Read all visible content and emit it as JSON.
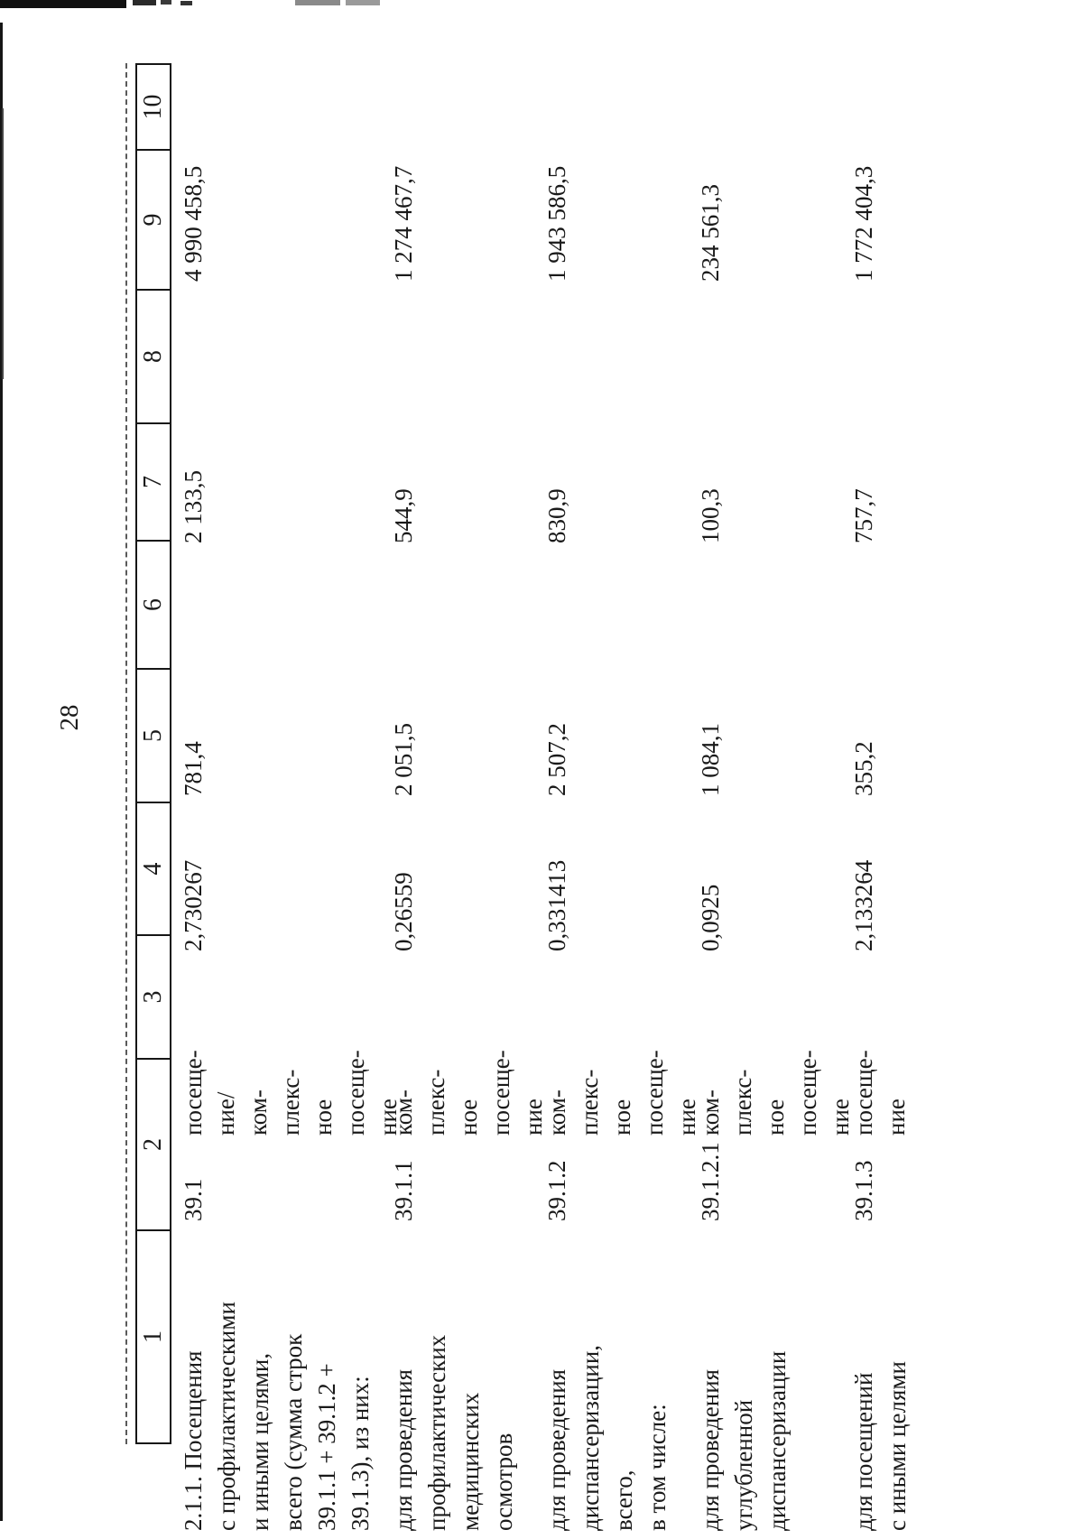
{
  "page": {
    "number": "28"
  },
  "table": {
    "header_columns": [
      "1",
      "2",
      "3",
      "4",
      "5",
      "6",
      "7",
      "8",
      "9",
      "10"
    ],
    "rows": [
      {
        "name": "2.1.1. Посещения\nс профилактическими\nи иными целями,\nвсего (сумма строк\n39.1.1 + 39.1.2 +\n39.1.3), из них:",
        "row_code": "39.1",
        "unit": "посеще-\nние/\nком-\nплекс-\nное\nпосеще-\nние",
        "col4": "2,730267",
        "col5": "781,4",
        "col7": "2 133,5",
        "col9": "4 990 458,5"
      },
      {
        "name": "для проведения\nпрофилактических\nмедицинских\nосмотров",
        "row_code": "39.1.1",
        "unit": "ком-\nплекс-\nное\nпосеще-\nние",
        "col4": "0,26559",
        "col5": "2 051,5",
        "col7": "544,9",
        "col9": "1 274 467,7"
      },
      {
        "name": "для проведения\nдиспансеризации,\nвсего,\nв том числе:",
        "row_code": "39.1.2",
        "unit": "ком-\nплекс-\nное\nпосеще-\nние",
        "col4": "0,331413",
        "col5": "2 507,2",
        "col7": "830,9",
        "col9": "1 943 586,5"
      },
      {
        "name": "для проведения\nуглубленной\nдиспансеризации",
        "row_code": "39.1.2.1",
        "unit": "ком-\nплекс-\nное\nпосеще-\nние",
        "col4": "0,0925",
        "col5": "1 084,1",
        "col7": "100,3",
        "col9": "234 561,3"
      },
      {
        "name": "для посещений\nс иными целями",
        "row_code": "39.1.3",
        "unit": "посеще-\nние",
        "col4": "2,133264",
        "col5": "355,2",
        "col7": "757,7",
        "col9": "1 772 404,3"
      }
    ]
  }
}
